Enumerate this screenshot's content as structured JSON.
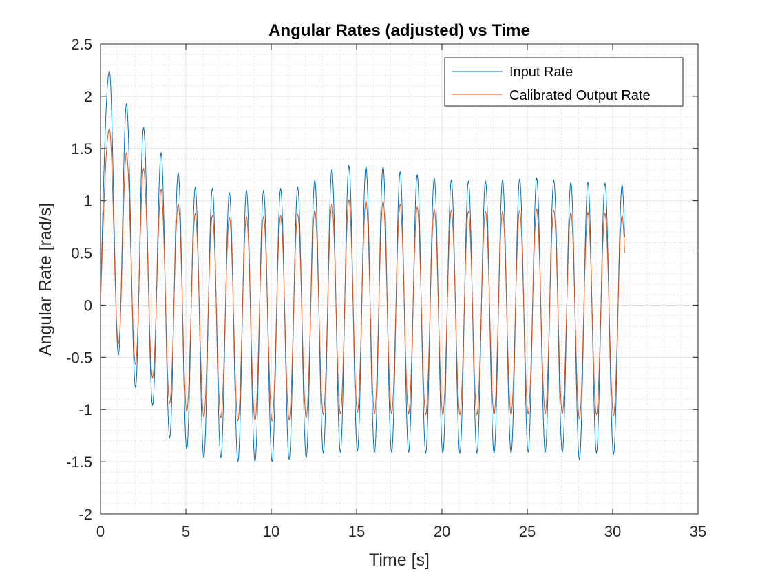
{
  "chart_data": {
    "type": "line",
    "title": "Angular Rates (adjusted) vs Time",
    "xlabel": "Time [s]",
    "ylabel": "Angular Rate [rad/s]",
    "xlim": [
      0,
      35
    ],
    "ylim": [
      -2,
      2.5
    ],
    "xticks": [
      0,
      5,
      10,
      15,
      20,
      25,
      30,
      35
    ],
    "yticks": [
      -2,
      -1.5,
      -1,
      -0.5,
      0,
      0.5,
      1,
      1.5,
      2,
      2.5
    ],
    "xtick_labels": [
      "0",
      "5",
      "10",
      "15",
      "20",
      "25",
      "30",
      "35"
    ],
    "ytick_labels": [
      "-2",
      "-1.5",
      "-1",
      "-0.5",
      "0",
      "0.5",
      "1",
      "1.5",
      "2",
      "2.5"
    ],
    "grid": true,
    "minor_grid": true,
    "legend_position": "top-right",
    "series": [
      {
        "name": "Input Rate",
        "color": "#0072BD",
        "start": [
          0,
          0
        ],
        "end": [
          30.7,
          0.65
        ],
        "peaks": [
          [
            0.52,
            2.24
          ],
          [
            1.52,
            1.93
          ],
          [
            2.52,
            1.7
          ],
          [
            3.55,
            1.46
          ],
          [
            4.55,
            1.27
          ],
          [
            5.55,
            1.13
          ],
          [
            6.55,
            1.12
          ],
          [
            7.55,
            1.08
          ],
          [
            8.55,
            1.1
          ],
          [
            9.55,
            1.1
          ],
          [
            10.55,
            1.12
          ],
          [
            11.55,
            1.13
          ],
          [
            12.55,
            1.2
          ],
          [
            13.55,
            1.3
          ],
          [
            14.55,
            1.34
          ],
          [
            15.55,
            1.33
          ],
          [
            16.55,
            1.33
          ],
          [
            17.55,
            1.28
          ],
          [
            18.55,
            1.25
          ],
          [
            19.55,
            1.22
          ],
          [
            20.55,
            1.2
          ],
          [
            21.55,
            1.19
          ],
          [
            22.55,
            1.19
          ],
          [
            23.55,
            1.2
          ],
          [
            24.55,
            1.21
          ],
          [
            25.55,
            1.22
          ],
          [
            26.55,
            1.2
          ],
          [
            27.55,
            1.18
          ],
          [
            28.55,
            1.18
          ],
          [
            29.55,
            1.17
          ],
          [
            30.55,
            1.15
          ]
        ],
        "troughs": [
          [
            1.05,
            -0.48
          ],
          [
            2.05,
            -0.79
          ],
          [
            3.05,
            -0.96
          ],
          [
            4.05,
            -1.27
          ],
          [
            5.05,
            -1.38
          ],
          [
            6.05,
            -1.46
          ],
          [
            7.05,
            -1.46
          ],
          [
            8.05,
            -1.5
          ],
          [
            9.05,
            -1.5
          ],
          [
            10.05,
            -1.5
          ],
          [
            11.05,
            -1.48
          ],
          [
            12.05,
            -1.46
          ],
          [
            13.05,
            -1.42
          ],
          [
            14.05,
            -1.41
          ],
          [
            15.05,
            -1.4
          ],
          [
            16.05,
            -1.41
          ],
          [
            17.05,
            -1.41
          ],
          [
            18.05,
            -1.41
          ],
          [
            19.05,
            -1.42
          ],
          [
            20.05,
            -1.42
          ],
          [
            21.05,
            -1.42
          ],
          [
            22.05,
            -1.42
          ],
          [
            23.05,
            -1.42
          ],
          [
            24.05,
            -1.42
          ],
          [
            25.05,
            -1.41
          ],
          [
            26.05,
            -1.41
          ],
          [
            27.05,
            -1.41
          ],
          [
            28.05,
            -1.48
          ],
          [
            29.05,
            -1.42
          ],
          [
            30.05,
            -1.43
          ]
        ]
      },
      {
        "name": "Calibrated Output Rate",
        "color": "#D95319",
        "start": [
          0,
          0
        ],
        "end": [
          30.7,
          0.5
        ],
        "peaks": [
          [
            0.52,
            1.69
          ],
          [
            1.52,
            1.46
          ],
          [
            2.52,
            1.31
          ],
          [
            3.55,
            1.11
          ],
          [
            4.55,
            0.97
          ],
          [
            5.55,
            0.88
          ],
          [
            6.55,
            0.86
          ],
          [
            7.55,
            0.84
          ],
          [
            8.55,
            0.85
          ],
          [
            9.55,
            0.85
          ],
          [
            10.55,
            0.86
          ],
          [
            11.55,
            0.87
          ],
          [
            12.55,
            0.91
          ],
          [
            13.55,
            0.97
          ],
          [
            14.55,
            1.01
          ],
          [
            15.55,
            1.0
          ],
          [
            16.55,
            1.0
          ],
          [
            17.55,
            0.97
          ],
          [
            18.55,
            0.94
          ],
          [
            19.55,
            0.92
          ],
          [
            20.55,
            0.91
          ],
          [
            21.55,
            0.9
          ],
          [
            22.55,
            0.9
          ],
          [
            23.55,
            0.9
          ],
          [
            24.55,
            0.91
          ],
          [
            25.55,
            0.92
          ],
          [
            26.55,
            0.91
          ],
          [
            27.55,
            0.89
          ],
          [
            28.55,
            0.89
          ],
          [
            29.55,
            0.88
          ],
          [
            30.55,
            0.86
          ]
        ],
        "troughs": [
          [
            1.05,
            -0.37
          ],
          [
            2.05,
            -0.57
          ],
          [
            3.05,
            -0.7
          ],
          [
            4.05,
            -0.94
          ],
          [
            5.05,
            -1.02
          ],
          [
            6.05,
            -1.07
          ],
          [
            7.05,
            -1.08
          ],
          [
            8.05,
            -1.11
          ],
          [
            9.05,
            -1.11
          ],
          [
            10.05,
            -1.11
          ],
          [
            11.05,
            -1.1
          ],
          [
            12.05,
            -1.08
          ],
          [
            13.05,
            -1.05
          ],
          [
            14.05,
            -1.04
          ],
          [
            15.05,
            -1.03
          ],
          [
            16.05,
            -1.04
          ],
          [
            17.05,
            -1.04
          ],
          [
            18.05,
            -1.04
          ],
          [
            19.05,
            -1.05
          ],
          [
            20.05,
            -1.05
          ],
          [
            21.05,
            -1.05
          ],
          [
            22.05,
            -1.05
          ],
          [
            23.05,
            -1.05
          ],
          [
            24.05,
            -1.05
          ],
          [
            25.05,
            -1.04
          ],
          [
            26.05,
            -1.04
          ],
          [
            27.05,
            -1.04
          ],
          [
            28.05,
            -1.09
          ],
          [
            29.05,
            -1.05
          ],
          [
            30.05,
            -1.06
          ]
        ]
      }
    ]
  }
}
